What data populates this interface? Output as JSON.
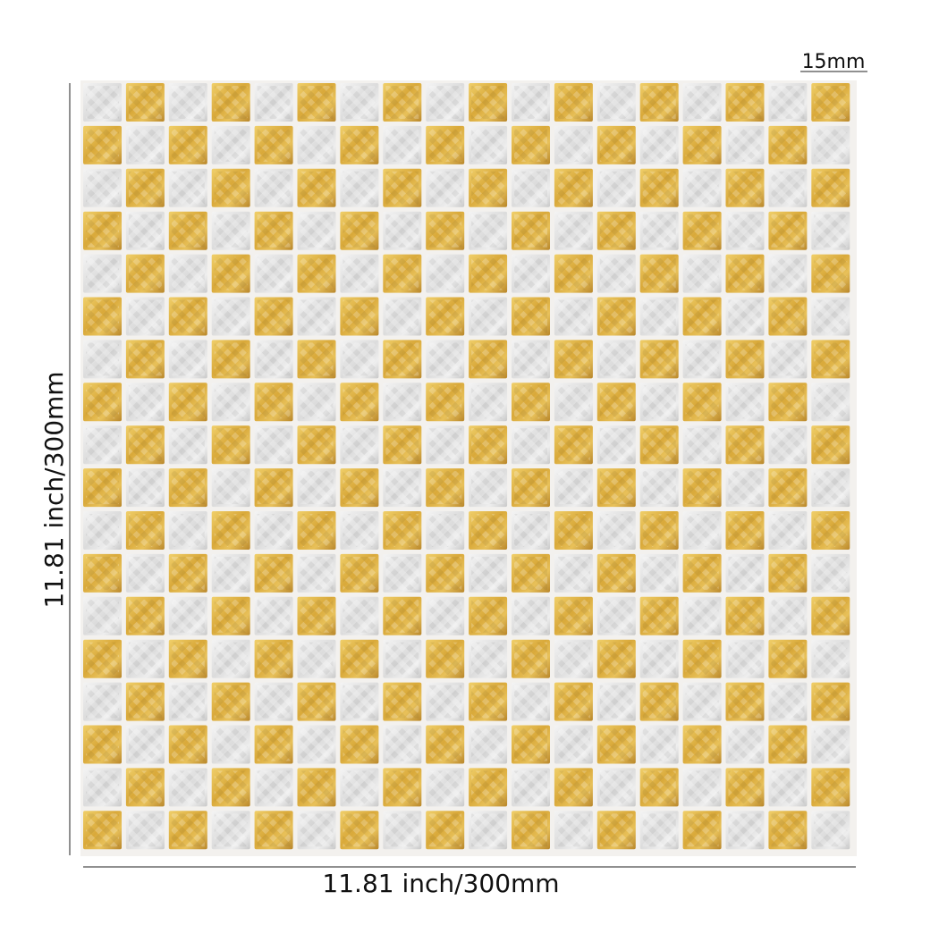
{
  "labels": {
    "tile_size": "15mm",
    "width": "11.81 inch/300mm",
    "height": "11.81 inch/300mm"
  }
}
